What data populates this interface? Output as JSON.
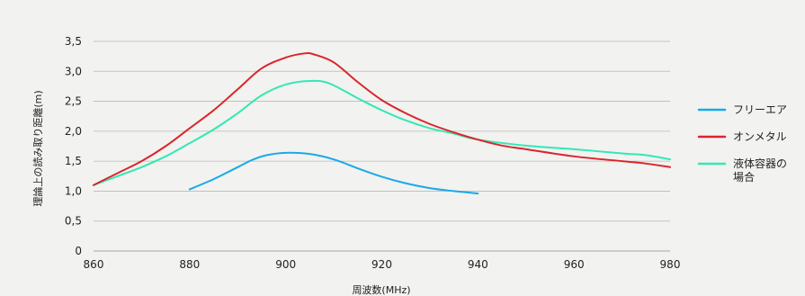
{
  "chart_data": {
    "type": "line",
    "title": "",
    "xlabel": "周波数(MHz)",
    "ylabel": "理論上の読み取り距離(m)",
    "xlim": [
      860,
      980
    ],
    "ylim": [
      0,
      3.5
    ],
    "x_ticks": [
      860,
      880,
      900,
      920,
      940,
      960,
      980
    ],
    "y_ticks": [
      {
        "value": 0,
        "label": "0"
      },
      {
        "value": 0.5,
        "label": "0,5"
      },
      {
        "value": 1.0,
        "label": "1,0"
      },
      {
        "value": 1.5,
        "label": "1,5"
      },
      {
        "value": 2.0,
        "label": "2,0"
      },
      {
        "value": 2.5,
        "label": "2,5"
      },
      {
        "value": 3.0,
        "label": "3,0"
      },
      {
        "value": 3.5,
        "label": "3,5"
      }
    ],
    "grid": "horizontal",
    "legend_position": "right",
    "series": [
      {
        "name": "フリーエア",
        "color": "#1aa9e8",
        "x": [
          880,
          885,
          890,
          893,
          896,
          900,
          905,
          910,
          915,
          920,
          925,
          930,
          935,
          940
        ],
        "y": [
          1.03,
          1.2,
          1.4,
          1.52,
          1.6,
          1.64,
          1.62,
          1.53,
          1.38,
          1.24,
          1.13,
          1.05,
          1.0,
          0.96
        ]
      },
      {
        "name": "オンメタル",
        "color": "#d9262b",
        "x": [
          860,
          865,
          870,
          875,
          880,
          885,
          890,
          895,
          900,
          904,
          906,
          910,
          915,
          920,
          925,
          930,
          935,
          940,
          945,
          950,
          960,
          970,
          975,
          980
        ],
        "y": [
          1.1,
          1.3,
          1.5,
          1.75,
          2.05,
          2.35,
          2.7,
          3.05,
          3.23,
          3.3,
          3.28,
          3.15,
          2.82,
          2.52,
          2.3,
          2.12,
          1.98,
          1.86,
          1.76,
          1.7,
          1.58,
          1.5,
          1.46,
          1.4
        ]
      },
      {
        "name": "液体容器の場合",
        "color": "#33e8b4",
        "x": [
          860,
          865,
          870,
          875,
          880,
          885,
          890,
          895,
          900,
          905,
          909,
          915,
          920,
          925,
          930,
          935,
          940,
          950,
          960,
          970,
          975,
          980
        ],
        "y": [
          1.1,
          1.25,
          1.4,
          1.58,
          1.8,
          2.03,
          2.3,
          2.6,
          2.78,
          2.84,
          2.8,
          2.55,
          2.35,
          2.18,
          2.05,
          1.96,
          1.86,
          1.76,
          1.7,
          1.63,
          1.6,
          1.53
        ]
      }
    ]
  },
  "legend": {
    "items": [
      {
        "lines": [
          "フリーエア"
        ],
        "color": "#1aa9e8"
      },
      {
        "lines": [
          "オンメタル"
        ],
        "color": "#d9262b"
      },
      {
        "lines": [
          "液体容器の",
          "場合"
        ],
        "color": "#33e8b4"
      }
    ]
  },
  "colors": {
    "background": "#f2f2f0",
    "grid": "#b8b8b8"
  }
}
